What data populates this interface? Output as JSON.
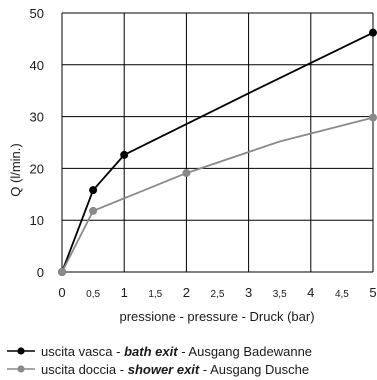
{
  "chart_data": {
    "type": "line",
    "xlabel": "pressione - pressure - Druck (bar)",
    "ylabel": "Q (l/min.)",
    "xlim": [
      0,
      5
    ],
    "ylim": [
      0,
      50
    ],
    "x_ticks": [
      {
        "value": 0,
        "label": "0",
        "major": true
      },
      {
        "value": 0.5,
        "label": "0,5",
        "major": false
      },
      {
        "value": 1,
        "label": "1",
        "major": true
      },
      {
        "value": 1.5,
        "label": "1,5",
        "major": false
      },
      {
        "value": 2,
        "label": "2",
        "major": true
      },
      {
        "value": 2.5,
        "label": "2,5",
        "major": false
      },
      {
        "value": 3,
        "label": "3",
        "major": true
      },
      {
        "value": 3.5,
        "label": "3,5",
        "major": false
      },
      {
        "value": 4,
        "label": "4",
        "major": true
      },
      {
        "value": 4.5,
        "label": "4,5",
        "major": false
      },
      {
        "value": 5,
        "label": "5",
        "major": true
      }
    ],
    "y_ticks": [
      {
        "value": 0,
        "label": "0"
      },
      {
        "value": 10,
        "label": "10"
      },
      {
        "value": 20,
        "label": "20"
      },
      {
        "value": 30,
        "label": "30"
      },
      {
        "value": 40,
        "label": "40"
      },
      {
        "value": 50,
        "label": "50"
      }
    ],
    "grid": true,
    "legend_position": "bottom",
    "series": [
      {
        "key": "bath",
        "name_it": "uscita vasca",
        "name_en": "bath exit",
        "name_de": "Ausgang Badewanne",
        "color": "#000000",
        "points": [
          [
            0,
            0
          ],
          [
            0.5,
            15.8
          ],
          [
            1,
            22.6
          ],
          [
            3,
            34.5
          ],
          [
            5,
            46.2
          ]
        ],
        "markers": [
          [
            0,
            0
          ],
          [
            0.5,
            15.8
          ],
          [
            1,
            22.6
          ],
          [
            5,
            46.2
          ]
        ]
      },
      {
        "key": "shower",
        "name_it": "uscita doccia",
        "name_en": "shower exit",
        "name_de": "Ausgang Dusche",
        "color": "#8a8a8a",
        "points": [
          [
            0,
            0
          ],
          [
            0.5,
            11.8
          ],
          [
            2,
            19.1
          ],
          [
            3.5,
            25.2
          ],
          [
            5,
            29.8
          ]
        ],
        "markers": [
          [
            0,
            0
          ],
          [
            0.5,
            11.8
          ],
          [
            2,
            19.1
          ],
          [
            5,
            29.8
          ]
        ]
      }
    ]
  },
  "legend_sep": " - "
}
